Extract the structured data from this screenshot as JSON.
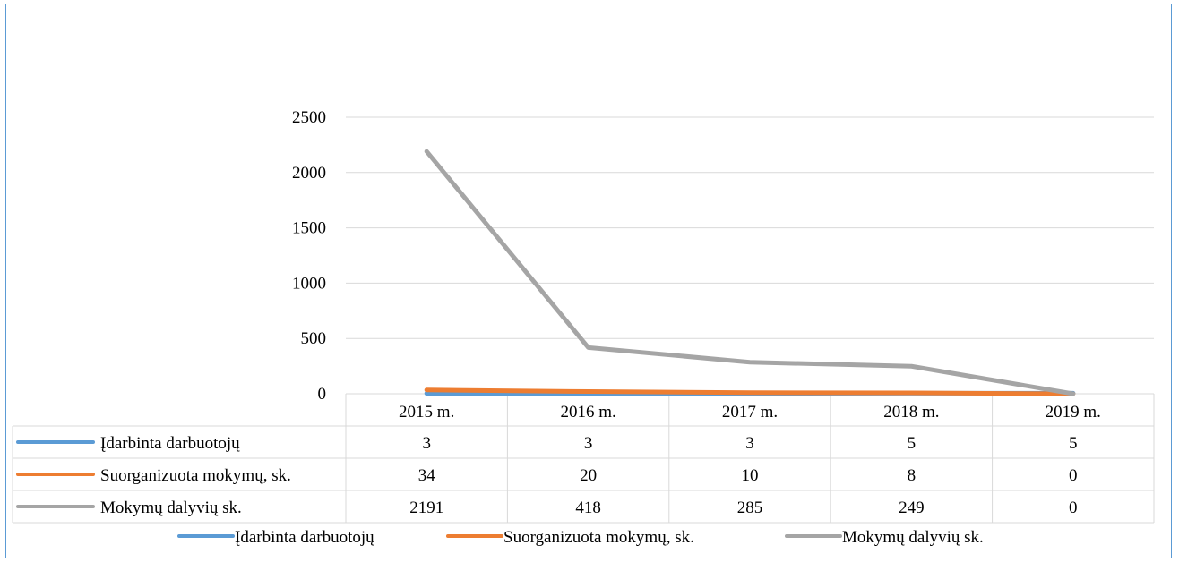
{
  "chart_data": {
    "type": "line",
    "title": "",
    "xlabel": "",
    "ylabel": "",
    "categories": [
      "2015 m.",
      "2016 m.",
      "2017 m.",
      "2018 m.",
      "2019 m."
    ],
    "ylim": [
      0,
      2500
    ],
    "yticks": [
      0,
      500,
      1000,
      1500,
      2000,
      2500
    ],
    "grid": true,
    "legend_position": "bottom",
    "data_table": true,
    "series": [
      {
        "name": "Įdarbinta darbuotojų",
        "color": "#5b9bd5",
        "values": [
          3,
          3,
          3,
          5,
          5
        ]
      },
      {
        "name": "Suorganizuota mokymų, sk.",
        "color": "#ed7d31",
        "values": [
          34,
          20,
          10,
          8,
          0
        ]
      },
      {
        "name": "Mokymų dalyvių sk.",
        "color": "#a5a5a5",
        "values": [
          2191,
          418,
          285,
          249,
          0
        ]
      }
    ]
  }
}
